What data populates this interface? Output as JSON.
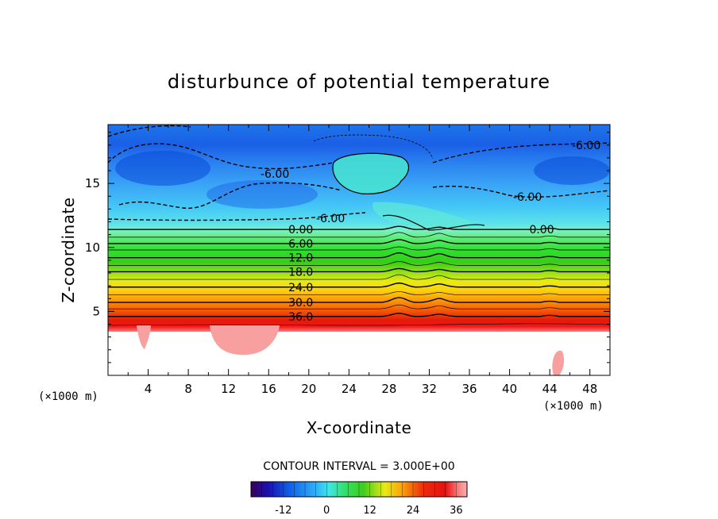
{
  "chart_data": {
    "type": "heatmap",
    "title": "disturbunce of potential temperature",
    "xlabel": "X-coordinate",
    "ylabel": "Z-coordinate",
    "x_unit": "(×1000 m)",
    "y_unit": "(×1000 m)",
    "xlim": [
      0,
      50
    ],
    "ylim": [
      0,
      19.6
    ],
    "x_ticks": [
      4,
      8,
      12,
      16,
      20,
      24,
      28,
      32,
      36,
      40,
      44,
      48
    ],
    "y_ticks": [
      5,
      10,
      15
    ],
    "contour_interval_text": "CONTOUR INTERVAL = 3.000E+00",
    "contour_interval": 3,
    "contours": [
      {
        "value": 36,
        "z": 4.6,
        "label": "36.0"
      },
      {
        "value": 33,
        "z": 5.2
      },
      {
        "value": 30,
        "z": 5.7,
        "label": "30.0"
      },
      {
        "value": 27,
        "z": 6.3
      },
      {
        "value": 24,
        "z": 6.9,
        "label": "24.0"
      },
      {
        "value": 21,
        "z": 7.5
      },
      {
        "value": 18,
        "z": 8.1,
        "label": "18.0"
      },
      {
        "value": 15,
        "z": 8.6
      },
      {
        "value": 12,
        "z": 9.2,
        "label": "12.0"
      },
      {
        "value": 9,
        "z": 9.8
      },
      {
        "value": 6,
        "z": 10.3,
        "label": "6.00"
      },
      {
        "value": 3,
        "z": 10.8
      },
      {
        "value": 0,
        "z": 11.4,
        "label": "0.00"
      }
    ],
    "negative_contour_labels": [
      "-6.00",
      "-6.00",
      "-6.00",
      "-6.00"
    ],
    "colorbar": {
      "min": -21,
      "max": 39,
      "ticks": [
        -12,
        0,
        12,
        24,
        36
      ]
    }
  }
}
